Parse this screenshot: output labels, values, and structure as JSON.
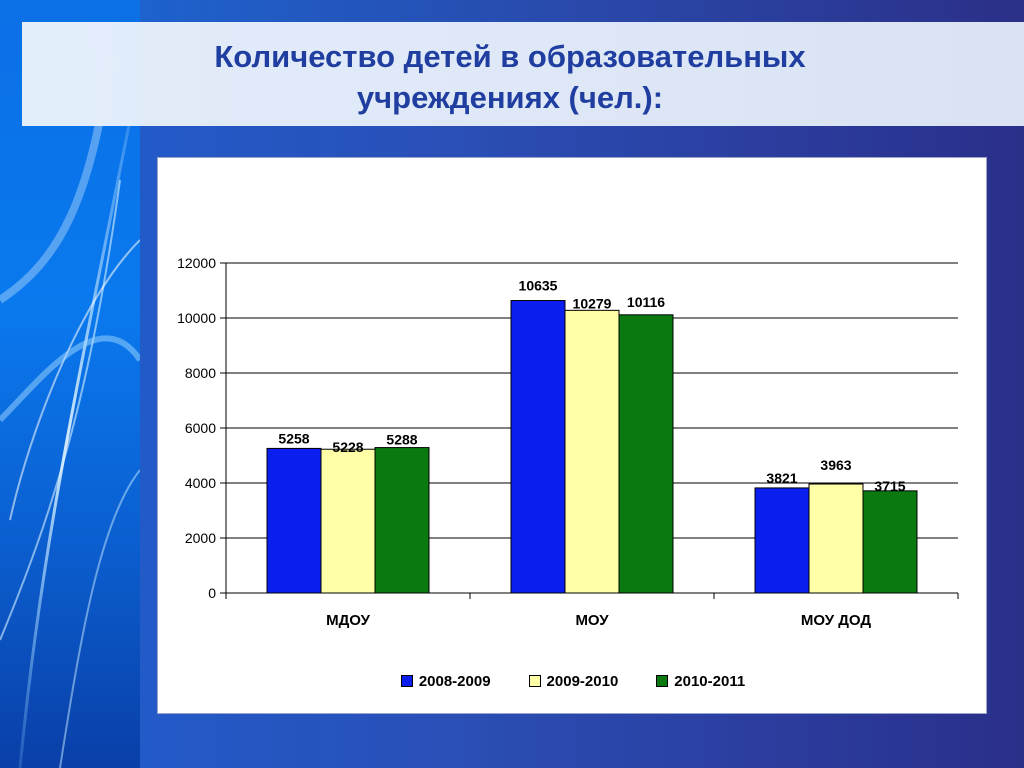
{
  "slide": {
    "title": "Количество детей в образовательных учреждениях (чел.):"
  },
  "colors": {
    "series_2008_2009": "#0a1ef0",
    "series_2009_2010": "#ffffa8",
    "series_2010_2011": "#0a7a10"
  },
  "chart_data": {
    "type": "bar",
    "categories": [
      "МДОУ",
      "МОУ",
      "МОУ ДОД"
    ],
    "series": [
      {
        "name": "2008-2009",
        "values": [
          5258,
          10635,
          3821
        ],
        "color": "#0a1ef0"
      },
      {
        "name": "2009-2010",
        "values": [
          5228,
          10279,
          3963
        ],
        "color": "#ffffa8"
      },
      {
        "name": "2010-2011",
        "values": [
          5288,
          10116,
          3715
        ],
        "color": "#0a7a10"
      }
    ],
    "ylim": [
      0,
      12000
    ],
    "yticks": [
      0,
      2000,
      4000,
      6000,
      8000,
      10000,
      12000
    ],
    "grid": true,
    "legend_position": "bottom",
    "data_labels": true
  }
}
